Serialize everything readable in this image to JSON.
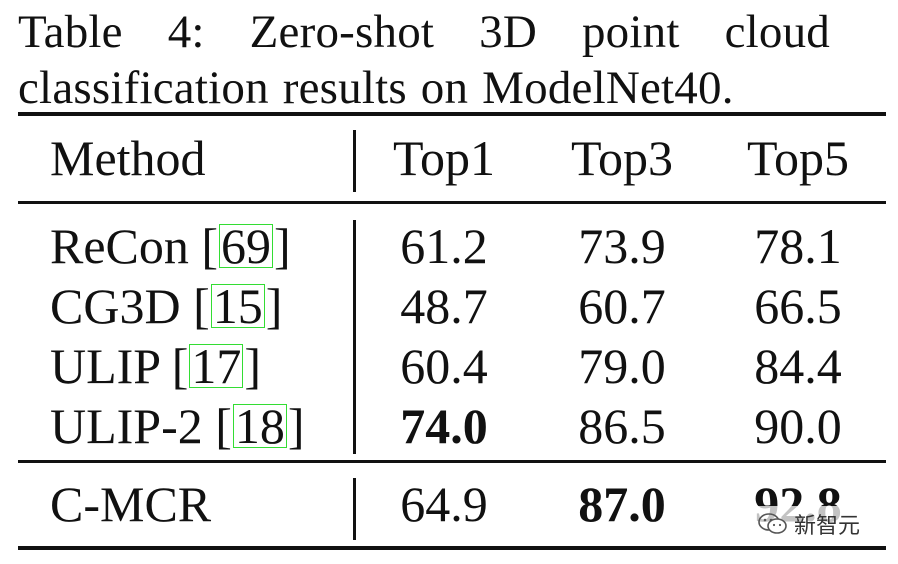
{
  "caption": {
    "line1": "Table 4: Zero-shot 3D point cloud",
    "line2": "classification results on ModelNet40."
  },
  "table": {
    "headers": [
      "Method",
      "Top1",
      "Top3",
      "Top5"
    ],
    "rows": [
      {
        "method": "ReCon [",
        "cite": "69",
        "close": "]",
        "top1": "61.2",
        "top3": "73.9",
        "top5": "78.1"
      },
      {
        "method": "CG3D [",
        "cite": "15",
        "close": "]",
        "top1": "48.7",
        "top3": "60.7",
        "top5": "66.5"
      },
      {
        "method": "ULIP [",
        "cite": "17",
        "close": "]",
        "top1": "60.4",
        "top3": "79.0",
        "top5": "84.4"
      },
      {
        "method": "ULIP-2 [",
        "cite": "18",
        "close": "]",
        "top1": "74.0",
        "top3": "86.5",
        "top5": "90.0"
      }
    ],
    "ours": {
      "method": "C-MCR",
      "top1": "64.9",
      "top3": "87.0",
      "top5": "92.8"
    }
  },
  "watermark": {
    "text": "新智元",
    "icon": "wechat-logo-icon"
  },
  "colors": {
    "cite_box": "#33dd33",
    "text": "#111111"
  }
}
